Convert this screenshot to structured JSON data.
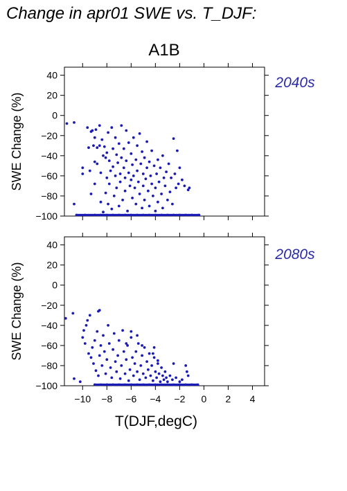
{
  "figure": {
    "title": "Change in apr01 SWE vs. T_DJF:",
    "scenario": "A1B"
  },
  "colors": {
    "points": "#1a1ab4",
    "period_label": "#2a2aa8",
    "axes": "#000000"
  },
  "chart_data": [
    {
      "type": "scatter",
      "period_label": "2040s",
      "xlabel": "",
      "ylabel": "SWE Change (%)",
      "xlim": [
        -11.5,
        5
      ],
      "ylim": [
        -100,
        48
      ],
      "xticks": [
        -10,
        -8,
        -6,
        -4,
        -2,
        0,
        2,
        4
      ],
      "yticks": [
        -100,
        -80,
        -60,
        -40,
        -20,
        0,
        20,
        40
      ],
      "ytick_labels": [
        "−100",
        "−80",
        "−60",
        "−40",
        "−20",
        "0",
        "20",
        "40"
      ],
      "xtick_labels_shown": false,
      "grid": false,
      "points": [
        [
          -11.3,
          -8
        ],
        [
          -10.7,
          -7
        ],
        [
          -10.7,
          -88
        ],
        [
          -10.0,
          -52
        ],
        [
          -10.0,
          -58
        ],
        [
          -9.6,
          -12
        ],
        [
          -9.5,
          -32
        ],
        [
          -9.4,
          -55
        ],
        [
          -9.3,
          -16
        ],
        [
          -9.3,
          -78
        ],
        [
          -9.2,
          -15
        ],
        [
          -9.1,
          -30
        ],
        [
          -9.0,
          -22
        ],
        [
          -9.0,
          -46
        ],
        [
          -9.0,
          -68
        ],
        [
          -8.9,
          -14
        ],
        [
          -8.8,
          -32
        ],
        [
          -8.8,
          -48
        ],
        [
          -8.6,
          -10
        ],
        [
          -8.6,
          -30
        ],
        [
          -8.5,
          -57
        ],
        [
          -8.5,
          -86
        ],
        [
          -8.4,
          -24
        ],
        [
          -8.3,
          -40
        ],
        [
          -8.3,
          -96
        ],
        [
          -8.2,
          -31
        ],
        [
          -8.1,
          -42
        ],
        [
          -8.1,
          -77
        ],
        [
          -8.0,
          -37
        ],
        [
          -8.0,
          -62
        ],
        [
          -7.9,
          -17
        ],
        [
          -7.9,
          -88
        ],
        [
          -7.8,
          -45
        ],
        [
          -7.8,
          -68
        ],
        [
          -7.7,
          -55
        ],
        [
          -7.6,
          -12
        ],
        [
          -7.6,
          -93
        ],
        [
          -7.5,
          -33
        ],
        [
          -7.5,
          -51
        ],
        [
          -7.4,
          -80
        ],
        [
          -7.3,
          -22
        ],
        [
          -7.3,
          -60
        ],
        [
          -7.2,
          -39
        ],
        [
          -7.2,
          -72
        ],
        [
          -7.1,
          -47
        ],
        [
          -7.0,
          -28
        ],
        [
          -7.0,
          -90
        ],
        [
          -6.9,
          -58
        ],
        [
          -6.9,
          -66
        ],
        [
          -6.8,
          -10
        ],
        [
          -6.8,
          -42
        ],
        [
          -6.7,
          -84
        ],
        [
          -6.6,
          -33
        ],
        [
          -6.6,
          -52
        ],
        [
          -6.5,
          -62
        ],
        [
          -6.5,
          -75
        ],
        [
          -6.4,
          -15
        ],
        [
          -6.4,
          -45
        ],
        [
          -6.3,
          -95
        ],
        [
          -6.2,
          -27
        ],
        [
          -6.2,
          -57
        ],
        [
          -6.1,
          -70
        ],
        [
          -6.0,
          -38
        ],
        [
          -6.0,
          -64
        ],
        [
          -5.9,
          -49
        ],
        [
          -5.9,
          -82
        ],
        [
          -5.8,
          -22
        ],
        [
          -5.8,
          -60
        ],
        [
          -5.7,
          -72
        ],
        [
          -5.6,
          -44
        ],
        [
          -5.6,
          -88
        ],
        [
          -5.5,
          -30
        ],
        [
          -5.5,
          -55
        ],
        [
          -5.4,
          -66
        ],
        [
          -5.3,
          -18
        ],
        [
          -5.3,
          -78
        ],
        [
          -5.2,
          -48
        ],
        [
          -5.1,
          -36
        ],
        [
          -5.1,
          -92
        ],
        [
          -5.0,
          -58
        ],
        [
          -5.0,
          -70
        ],
        [
          -4.9,
          -42
        ],
        [
          -4.9,
          -84
        ],
        [
          -4.8,
          -63
        ],
        [
          -4.7,
          -26
        ],
        [
          -4.7,
          -52
        ],
        [
          -4.6,
          -75
        ],
        [
          -4.5,
          -46
        ],
        [
          -4.5,
          -90
        ],
        [
          -4.4,
          -60
        ],
        [
          -4.3,
          -35
        ],
        [
          -4.3,
          -68
        ],
        [
          -4.2,
          -80
        ],
        [
          -4.1,
          -50
        ],
        [
          -4.0,
          -72
        ],
        [
          -4.0,
          -95
        ],
        [
          -3.9,
          -58
        ],
        [
          -3.8,
          -44
        ],
        [
          -3.8,
          -86
        ],
        [
          -3.7,
          -66
        ],
        [
          -3.6,
          -52
        ],
        [
          -3.5,
          -78
        ],
        [
          -3.4,
          -40
        ],
        [
          -3.4,
          -92
        ],
        [
          -3.3,
          -62
        ],
        [
          -3.2,
          -70
        ],
        [
          -3.1,
          -56
        ],
        [
          -3.0,
          -84
        ],
        [
          -2.9,
          -48
        ],
        [
          -2.8,
          -76
        ],
        [
          -2.7,
          -62
        ],
        [
          -2.6,
          -88
        ],
        [
          -2.5,
          -23
        ],
        [
          -2.4,
          -58
        ],
        [
          -2.3,
          -72
        ],
        [
          -2.2,
          -35
        ],
        [
          -2.1,
          -68
        ],
        [
          -2.0,
          -52
        ],
        [
          -1.8,
          -64
        ],
        [
          -1.6,
          -70
        ],
        [
          -1.3,
          -74
        ],
        [
          -1.2,
          -72
        ],
        [
          -10.5,
          -100
        ],
        [
          -9.8,
          -100
        ],
        [
          -9.0,
          -100
        ],
        [
          -8.5,
          -100
        ],
        [
          -8.0,
          -100
        ],
        [
          -7.5,
          -100
        ],
        [
          -7.0,
          -100
        ],
        [
          -6.5,
          -100
        ],
        [
          -6.0,
          -100
        ],
        [
          -5.5,
          -100
        ],
        [
          -5.0,
          -100
        ],
        [
          -4.5,
          -100
        ],
        [
          -4.0,
          -100
        ],
        [
          -3.5,
          -100
        ],
        [
          -3.0,
          -100
        ],
        [
          -2.5,
          -100
        ],
        [
          -2.0,
          -100
        ],
        [
          -1.5,
          -100
        ],
        [
          -1.0,
          -100
        ],
        [
          -0.4,
          -100
        ]
      ]
    },
    {
      "type": "scatter",
      "period_label": "2080s",
      "xlabel": "T(DJF,degC)",
      "ylabel": "SWE Change (%)",
      "xlim": [
        -11.5,
        5
      ],
      "ylim": [
        -100,
        48
      ],
      "xticks": [
        -10,
        -8,
        -6,
        -4,
        -2,
        0,
        2,
        4
      ],
      "xtick_labels": [
        "−10",
        "−8",
        "−6",
        "−4",
        "−2",
        "0",
        "2",
        "4"
      ],
      "yticks": [
        -100,
        -80,
        -60,
        -40,
        -20,
        0,
        20,
        40
      ],
      "ytick_labels": [
        "−100",
        "−80",
        "−60",
        "−40",
        "−20",
        "0",
        "20",
        "40"
      ],
      "xtick_labels_shown": true,
      "grid": false,
      "points": [
        [
          -11.4,
          -33
        ],
        [
          -10.8,
          -28
        ],
        [
          -10.7,
          -93
        ],
        [
          -10.2,
          -96
        ],
        [
          -10.0,
          -52
        ],
        [
          -9.9,
          -45
        ],
        [
          -9.8,
          -58
        ],
        [
          -9.7,
          -40
        ],
        [
          -9.6,
          -35
        ],
        [
          -9.5,
          -68
        ],
        [
          -9.4,
          -30
        ],
        [
          -9.3,
          -72
        ],
        [
          -9.2,
          -62
        ],
        [
          -9.1,
          -78
        ],
        [
          -9.0,
          -55
        ],
        [
          -8.9,
          -85
        ],
        [
          -8.8,
          -46
        ],
        [
          -8.7,
          -26
        ],
        [
          -8.7,
          -90
        ],
        [
          -8.6,
          -70
        ],
        [
          -8.5,
          -60
        ],
        [
          -8.4,
          -80
        ],
        [
          -8.3,
          -50
        ],
        [
          -8.2,
          -66
        ],
        [
          -8.1,
          -88
        ],
        [
          -8.0,
          -74
        ],
        [
          -7.9,
          -40
        ],
        [
          -7.8,
          -58
        ],
        [
          -7.7,
          -82
        ],
        [
          -7.6,
          -92
        ],
        [
          -7.5,
          -64
        ],
        [
          -7.4,
          -48
        ],
        [
          -7.3,
          -76
        ],
        [
          -7.2,
          -86
        ],
        [
          -7.1,
          -70
        ],
        [
          -7.0,
          -55
        ],
        [
          -6.9,
          -93
        ],
        [
          -6.8,
          -80
        ],
        [
          -6.7,
          -45
        ],
        [
          -6.6,
          -66
        ],
        [
          -6.5,
          -88
        ],
        [
          -6.4,
          -74
        ],
        [
          -6.3,
          -60
        ],
        [
          -6.2,
          -95
        ],
        [
          -6.1,
          -84
        ],
        [
          -6.0,
          -52
        ],
        [
          -5.9,
          -72
        ],
        [
          -5.8,
          -90
        ],
        [
          -5.7,
          -78
        ],
        [
          -5.6,
          -66
        ],
        [
          -5.5,
          -86
        ],
        [
          -5.4,
          -58
        ],
        [
          -5.3,
          -94
        ],
        [
          -5.2,
          -80
        ],
        [
          -5.1,
          -70
        ],
        [
          -5.0,
          -88
        ],
        [
          -4.9,
          -62
        ],
        [
          -4.8,
          -92
        ],
        [
          -4.7,
          -76
        ],
        [
          -4.6,
          -84
        ],
        [
          -4.5,
          -68
        ],
        [
          -4.4,
          -90
        ],
        [
          -4.3,
          -80
        ],
        [
          -4.2,
          -95
        ],
        [
          -4.1,
          -72
        ],
        [
          -4.0,
          -86
        ],
        [
          -3.9,
          -92
        ],
        [
          -3.8,
          -78
        ],
        [
          -3.7,
          -88
        ],
        [
          -3.6,
          -96
        ],
        [
          -3.5,
          -82
        ],
        [
          -3.4,
          -90
        ],
        [
          -3.3,
          -94
        ],
        [
          -3.2,
          -86
        ],
        [
          -3.1,
          -92
        ],
        [
          -3.0,
          -96
        ],
        [
          -2.8,
          -90
        ],
        [
          -2.6,
          -94
        ],
        [
          -2.5,
          -78
        ],
        [
          -2.3,
          -92
        ],
        [
          -2.0,
          -96
        ],
        [
          -1.8,
          -94
        ],
        [
          -1.5,
          -80
        ],
        [
          -1.4,
          -86
        ],
        [
          -1.3,
          -90
        ],
        [
          -4.2,
          -68
        ],
        [
          -4.1,
          -62
        ],
        [
          -3.8,
          -75
        ],
        [
          -6.0,
          -46
        ],
        [
          -5.5,
          -50
        ],
        [
          -6.4,
          -58
        ],
        [
          -5.1,
          -60
        ],
        [
          -8.6,
          -25
        ],
        [
          -7.0,
          -100
        ],
        [
          -6.5,
          -100
        ],
        [
          -6.0,
          -100
        ],
        [
          -5.5,
          -100
        ],
        [
          -5.0,
          -100
        ],
        [
          -4.5,
          -100
        ],
        [
          -4.0,
          -100
        ],
        [
          -3.5,
          -100
        ],
        [
          -3.0,
          -100
        ],
        [
          -2.5,
          -100
        ],
        [
          -2.0,
          -100
        ],
        [
          -1.5,
          -100
        ],
        [
          -1.0,
          -100
        ],
        [
          -0.5,
          -100
        ],
        [
          -7.5,
          -100
        ],
        [
          -8.0,
          -100
        ],
        [
          -8.5,
          -100
        ],
        [
          -9.0,
          -100
        ]
      ]
    }
  ]
}
